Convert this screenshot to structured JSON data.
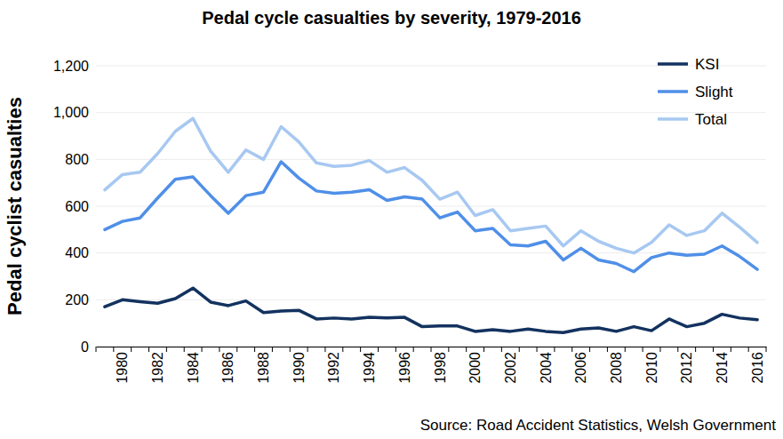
{
  "chart_data": {
    "type": "line",
    "title": "Pedal cycle casualties by severity, 1979-2016",
    "y_label": "Pedal cyclist casualties",
    "annotations": [
      "Source: Road Accident Statistics, Welsh Government"
    ],
    "categories": [
      null,
      "1980",
      null,
      "1982",
      null,
      "1984",
      null,
      "1986",
      null,
      "1988",
      null,
      "1990",
      null,
      "1992",
      null,
      "1994",
      null,
      "1996",
      null,
      "1998",
      null,
      "2000",
      null,
      "2002",
      null,
      "2004",
      null,
      "2006",
      null,
      "2008",
      null,
      "2010",
      null,
      "2012",
      null,
      "2014",
      null,
      "2016"
    ],
    "series": [
      {
        "name": "KSI",
        "color": "#13325f",
        "values": [
          170,
          200,
          192,
          185,
          205,
          250,
          190,
          175,
          195,
          145,
          152,
          155,
          118,
          122,
          118,
          125,
          122,
          125,
          85,
          88,
          88,
          65,
          72,
          65,
          75,
          65,
          60,
          75,
          80,
          65,
          85,
          68,
          118,
          85,
          100,
          138,
          122,
          115
        ]
      },
      {
        "name": "Slight",
        "color": "#4f8fe8",
        "values": [
          500,
          535,
          550,
          635,
          715,
          725,
          645,
          570,
          645,
          660,
          790,
          720,
          665,
          655,
          660,
          670,
          625,
          640,
          630,
          550,
          575,
          495,
          505,
          435,
          430,
          450,
          370,
          420,
          370,
          355,
          320,
          380,
          400,
          390,
          395,
          430,
          385,
          330
        ]
      },
      {
        "name": "Total",
        "color": "#a7c8f1",
        "values": [
          670,
          735,
          745,
          825,
          920,
          975,
          835,
          745,
          840,
          800,
          940,
          875,
          785,
          770,
          775,
          795,
          745,
          765,
          710,
          630,
          660,
          560,
          585,
          495,
          505,
          515,
          430,
          495,
          450,
          420,
          400,
          445,
          520,
          475,
          495,
          570,
          510,
          445
        ]
      }
    ],
    "ylim": [
      0,
      1200
    ],
    "yticks": [
      0,
      200,
      400,
      600,
      800,
      {
        "value": 1000,
        "label": "1,000"
      },
      {
        "value": 1200,
        "label": "1,200"
      }
    ],
    "grid": true,
    "legend": "top-right"
  }
}
